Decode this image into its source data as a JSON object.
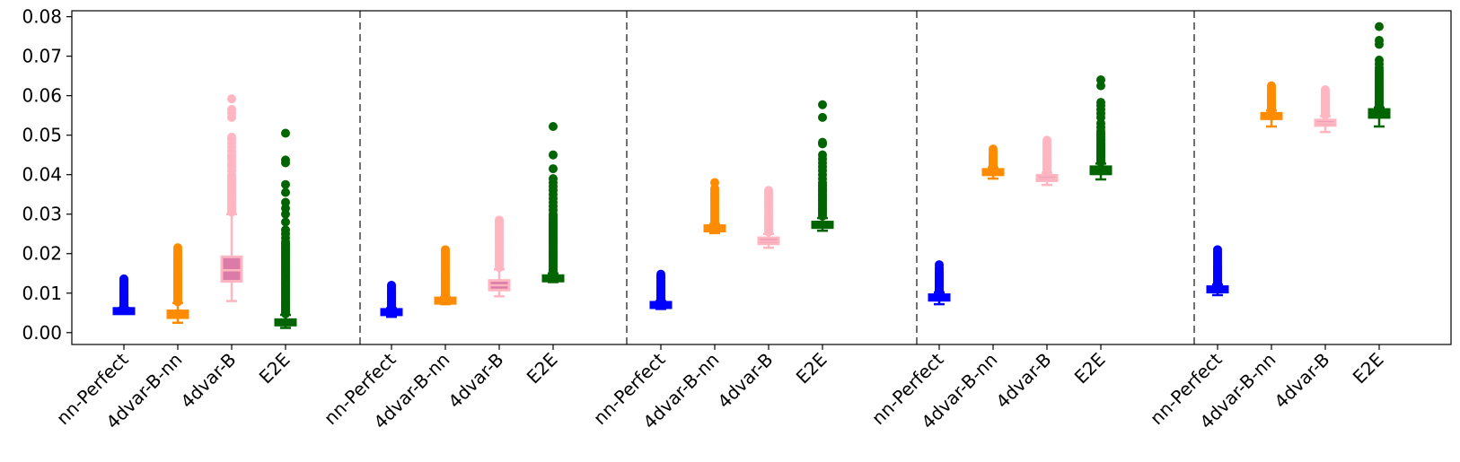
{
  "chart_data": {
    "type": "box",
    "title": "",
    "xlabel": "",
    "ylabel": "",
    "ylim": [
      -0.003,
      0.0815
    ],
    "y_ticks": [
      "0.00",
      "0.01",
      "0.02",
      "0.03",
      "0.04",
      "0.05",
      "0.06",
      "0.07",
      "0.08"
    ],
    "y_tick_values": [
      0.0,
      0.01,
      0.02,
      0.03,
      0.04,
      0.05,
      0.06,
      0.07,
      0.08
    ],
    "grid": false,
    "separator_style": "dashed",
    "categories": [
      "nn-Perfect",
      "4dvar-B-nn",
      "4dvar-B",
      "E2E"
    ],
    "series_colors": {
      "nn-Perfect": "#0000ff",
      "4dvar-B-nn": "#ff8c00",
      "4dvar-B": "#ffb6c1",
      "E2E": "#006400"
    },
    "box_fill_4dvar_B": "#db7ca8",
    "groups": [
      {
        "boxes": [
          {
            "category": "nn-Perfect",
            "whisker_low": 0.0048,
            "q1": 0.0051,
            "median": 0.0054,
            "q3": 0.0058,
            "whisker_high": 0.0063,
            "outliers": [
              0.0065,
              0.0068,
              0.0071,
              0.0074,
              0.0077,
              0.008,
              0.0083,
              0.0086,
              0.0089,
              0.0092,
              0.0095,
              0.0098,
              0.0101,
              0.0104,
              0.0107,
              0.011,
              0.0113,
              0.0116,
              0.012,
              0.0124,
              0.0128,
              0.0132,
              0.0136
            ]
          },
          {
            "category": "4dvar-B-nn",
            "whisker_low": 0.0025,
            "q1": 0.0038,
            "median": 0.0045,
            "q3": 0.0055,
            "whisker_high": 0.0075,
            "outliers": [
              0.0078,
              0.0082,
              0.0086,
              0.009,
              0.0094,
              0.0098,
              0.0102,
              0.0106,
              0.011,
              0.0114,
              0.0118,
              0.0122,
              0.0126,
              0.013,
              0.0134,
              0.0138,
              0.0142,
              0.0146,
              0.015,
              0.0154,
              0.0158,
              0.0162,
              0.0166,
              0.017,
              0.0174,
              0.0178,
              0.0182,
              0.0186,
              0.019,
              0.0195,
              0.02,
              0.0205,
              0.021,
              0.0215
            ]
          },
          {
            "category": "4dvar-B",
            "whisker_low": 0.008,
            "q1": 0.013,
            "median": 0.0158,
            "q3": 0.0192,
            "whisker_high": 0.03,
            "outliers": [
              0.0305,
              0.031,
              0.0315,
              0.032,
              0.0325,
              0.033,
              0.0335,
              0.034,
              0.0345,
              0.035,
              0.0355,
              0.036,
              0.0365,
              0.037,
              0.0375,
              0.038,
              0.0385,
              0.039,
              0.0395,
              0.04,
              0.041,
              0.042,
              0.0425,
              0.043,
              0.044,
              0.0445,
              0.045,
              0.046,
              0.047,
              0.048,
              0.049,
              0.0495,
              0.0545,
              0.0555,
              0.0565,
              0.0592
            ]
          },
          {
            "category": "E2E",
            "whisker_low": 0.0012,
            "q1": 0.002,
            "median": 0.0026,
            "q3": 0.0032,
            "whisker_high": 0.0045,
            "outliers": [
              0.0048,
              0.0052,
              0.0056,
              0.006,
              0.0064,
              0.0068,
              0.0072,
              0.0076,
              0.008,
              0.0085,
              0.009,
              0.0095,
              0.01,
              0.0105,
              0.011,
              0.0115,
              0.012,
              0.0125,
              0.013,
              0.0135,
              0.014,
              0.0145,
              0.015,
              0.0155,
              0.016,
              0.0165,
              0.017,
              0.0175,
              0.018,
              0.0185,
              0.019,
              0.0195,
              0.02,
              0.0205,
              0.021,
              0.0215,
              0.022,
              0.0225,
              0.023,
              0.024,
              0.025,
              0.026,
              0.028,
              0.03,
              0.0315,
              0.033,
              0.0355,
              0.0375,
              0.043,
              0.0437,
              0.0505
            ]
          }
        ]
      },
      {
        "boxes": [
          {
            "category": "nn-Perfect",
            "whisker_low": 0.004,
            "q1": 0.0046,
            "median": 0.0052,
            "q3": 0.0058,
            "whisker_high": 0.0062,
            "outliers": [
              0.0065,
              0.0068,
              0.0071,
              0.0074,
              0.0077,
              0.008,
              0.0083,
              0.0086,
              0.0089,
              0.0092,
              0.0095,
              0.0098,
              0.0101,
              0.0104,
              0.0108,
              0.0112,
              0.0116,
              0.012
            ]
          },
          {
            "category": "4dvar-B-nn",
            "whisker_low": 0.0072,
            "q1": 0.0076,
            "median": 0.008,
            "q3": 0.0086,
            "whisker_high": 0.009,
            "outliers": [
              0.0094,
              0.0098,
              0.0102,
              0.0106,
              0.011,
              0.0114,
              0.0118,
              0.0122,
              0.0126,
              0.013,
              0.0134,
              0.0138,
              0.0142,
              0.0146,
              0.015,
              0.0155,
              0.016,
              0.0165,
              0.017,
              0.0175,
              0.018,
              0.0185,
              0.019,
              0.0195,
              0.02,
              0.0205,
              0.021
            ]
          },
          {
            "category": "4dvar-B",
            "whisker_low": 0.0092,
            "q1": 0.0108,
            "median": 0.012,
            "q3": 0.0132,
            "whisker_high": 0.016,
            "outliers": [
              0.0165,
              0.017,
              0.0175,
              0.018,
              0.0185,
              0.019,
              0.0195,
              0.02,
              0.0205,
              0.021,
              0.0215,
              0.022,
              0.0225,
              0.023,
              0.0235,
              0.024,
              0.0245,
              0.025,
              0.0255,
              0.026,
              0.0265,
              0.027,
              0.0275,
              0.028,
              0.0285
            ]
          },
          {
            "category": "E2E",
            "whisker_low": 0.0128,
            "q1": 0.0133,
            "median": 0.0137,
            "q3": 0.0142,
            "whisker_high": 0.015,
            "outliers": [
              0.0155,
              0.016,
              0.0165,
              0.017,
              0.0175,
              0.018,
              0.0185,
              0.019,
              0.0195,
              0.02,
              0.0205,
              0.021,
              0.0215,
              0.022,
              0.0225,
              0.023,
              0.0235,
              0.024,
              0.0245,
              0.025,
              0.0255,
              0.026,
              0.0265,
              0.027,
              0.0275,
              0.028,
              0.0285,
              0.029,
              0.0295,
              0.03,
              0.031,
              0.032,
              0.033,
              0.034,
              0.035,
              0.036,
              0.037,
              0.038,
              0.039,
              0.0415,
              0.045,
              0.0522
            ]
          }
        ]
      },
      {
        "boxes": [
          {
            "category": "nn-Perfect",
            "whisker_low": 0.006,
            "q1": 0.0065,
            "median": 0.007,
            "q3": 0.0075,
            "whisker_high": 0.008,
            "outliers": [
              0.0083,
              0.0086,
              0.0089,
              0.0092,
              0.0095,
              0.0098,
              0.0101,
              0.0104,
              0.0107,
              0.011,
              0.0113,
              0.0116,
              0.012,
              0.0124,
              0.0128,
              0.0132,
              0.0136,
              0.014,
              0.0144,
              0.0148
            ]
          },
          {
            "category": "4dvar-B-nn",
            "whisker_low": 0.0252,
            "q1": 0.0258,
            "median": 0.0264,
            "q3": 0.027,
            "whisker_high": 0.0275,
            "outliers": [
              0.028,
              0.0285,
              0.029,
              0.0295,
              0.03,
              0.0305,
              0.031,
              0.0315,
              0.032,
              0.0325,
              0.033,
              0.0335,
              0.034,
              0.0345,
              0.035,
              0.0355,
              0.036,
              0.0365,
              0.038
            ]
          },
          {
            "category": "4dvar-B",
            "whisker_low": 0.0215,
            "q1": 0.0225,
            "median": 0.0232,
            "q3": 0.024,
            "whisker_high": 0.025,
            "outliers": [
              0.0255,
              0.026,
              0.0265,
              0.027,
              0.0275,
              0.028,
              0.0285,
              0.029,
              0.0295,
              0.03,
              0.0305,
              0.031,
              0.0315,
              0.032,
              0.0325,
              0.033,
              0.0335,
              0.034,
              0.0345,
              0.035,
              0.0355,
              0.036
            ]
          },
          {
            "category": "E2E",
            "whisker_low": 0.0258,
            "q1": 0.0266,
            "median": 0.0272,
            "q3": 0.028,
            "whisker_high": 0.029,
            "outliers": [
              0.0295,
              0.03,
              0.0305,
              0.031,
              0.0315,
              0.032,
              0.0325,
              0.033,
              0.0335,
              0.034,
              0.0345,
              0.035,
              0.0355,
              0.036,
              0.0365,
              0.037,
              0.0375,
              0.038,
              0.039,
              0.04,
              0.041,
              0.042,
              0.043,
              0.044,
              0.045,
              0.0478,
              0.0482,
              0.0545,
              0.0577
            ]
          }
        ]
      },
      {
        "boxes": [
          {
            "category": "nn-Perfect",
            "whisker_low": 0.0072,
            "q1": 0.0082,
            "median": 0.009,
            "q3": 0.0096,
            "whisker_high": 0.0102,
            "outliers": [
              0.0105,
              0.0108,
              0.0111,
              0.0114,
              0.0117,
              0.012,
              0.0123,
              0.0126,
              0.0129,
              0.0132,
              0.0135,
              0.0138,
              0.0142,
              0.0146,
              0.015,
              0.0155,
              0.016,
              0.0165,
              0.0172
            ]
          },
          {
            "category": "4dvar-B-nn",
            "whisker_low": 0.039,
            "q1": 0.04,
            "median": 0.0406,
            "q3": 0.0413,
            "whisker_high": 0.0418,
            "outliers": [
              0.0421,
              0.0424,
              0.0427,
              0.043,
              0.0433,
              0.0436,
              0.0439,
              0.0442,
              0.0445,
              0.0448,
              0.0452,
              0.0458,
              0.0465
            ]
          },
          {
            "category": "4dvar-B",
            "whisker_low": 0.0374,
            "q1": 0.0385,
            "median": 0.0391,
            "q3": 0.0398,
            "whisker_high": 0.0405,
            "outliers": [
              0.0408,
              0.0411,
              0.0414,
              0.0417,
              0.042,
              0.0423,
              0.0426,
              0.0429,
              0.0432,
              0.0435,
              0.0438,
              0.0441,
              0.0444,
              0.0447,
              0.045,
              0.0455,
              0.046,
              0.0465,
              0.047,
              0.0475,
              0.048,
              0.0487
            ]
          },
          {
            "category": "E2E",
            "whisker_low": 0.0388,
            "q1": 0.0402,
            "median": 0.041,
            "q3": 0.042,
            "whisker_high": 0.0428,
            "outliers": [
              0.0432,
              0.0436,
              0.044,
              0.0444,
              0.0448,
              0.0452,
              0.0456,
              0.046,
              0.0464,
              0.0468,
              0.0472,
              0.0476,
              0.048,
              0.0485,
              0.049,
              0.0495,
              0.05,
              0.0505,
              0.051,
              0.052,
              0.053,
              0.0545,
              0.0555,
              0.0565,
              0.0575,
              0.0583,
              0.0625,
              0.064
            ]
          }
        ]
      },
      {
        "boxes": [
          {
            "category": "nn-Perfect",
            "whisker_low": 0.0095,
            "q1": 0.0103,
            "median": 0.011,
            "q3": 0.0116,
            "whisker_high": 0.0122,
            "outliers": [
              0.0125,
              0.0128,
              0.0131,
              0.0134,
              0.0137,
              0.014,
              0.0143,
              0.0146,
              0.0149,
              0.0152,
              0.0155,
              0.0158,
              0.0161,
              0.0164,
              0.0167,
              0.017,
              0.0175,
              0.018,
              0.0185,
              0.019,
              0.0195,
              0.02,
              0.0205,
              0.021
            ]
          },
          {
            "category": "4dvar-B-nn",
            "whisker_low": 0.0522,
            "q1": 0.0542,
            "median": 0.0549,
            "q3": 0.0555,
            "whisker_high": 0.0562,
            "outliers": [
              0.0565,
              0.0568,
              0.0571,
              0.0574,
              0.0577,
              0.058,
              0.0583,
              0.0586,
              0.0589,
              0.0592,
              0.0595,
              0.0598,
              0.0602,
              0.0606,
              0.061,
              0.0615,
              0.062,
              0.0625
            ]
          },
          {
            "category": "4dvar-B",
            "whisker_low": 0.0508,
            "q1": 0.0525,
            "median": 0.0531,
            "q3": 0.0538,
            "whisker_high": 0.0548,
            "outliers": [
              0.0551,
              0.0554,
              0.0557,
              0.056,
              0.0563,
              0.0566,
              0.0569,
              0.0572,
              0.0575,
              0.0578,
              0.0581,
              0.0584,
              0.0587,
              0.059,
              0.0593,
              0.0596,
              0.06,
              0.0605,
              0.061,
              0.0615
            ]
          },
          {
            "category": "E2E",
            "whisker_low": 0.0522,
            "q1": 0.0545,
            "median": 0.0555,
            "q3": 0.0565,
            "whisker_high": 0.057,
            "outliers": [
              0.0574,
              0.0578,
              0.0582,
              0.0586,
              0.059,
              0.0594,
              0.0598,
              0.0602,
              0.0606,
              0.061,
              0.0614,
              0.0618,
              0.0622,
              0.0626,
              0.063,
              0.0635,
              0.064,
              0.0645,
              0.065,
              0.0655,
              0.066,
              0.0665,
              0.067,
              0.068,
              0.069,
              0.073,
              0.074,
              0.0775
            ]
          }
        ]
      }
    ]
  }
}
